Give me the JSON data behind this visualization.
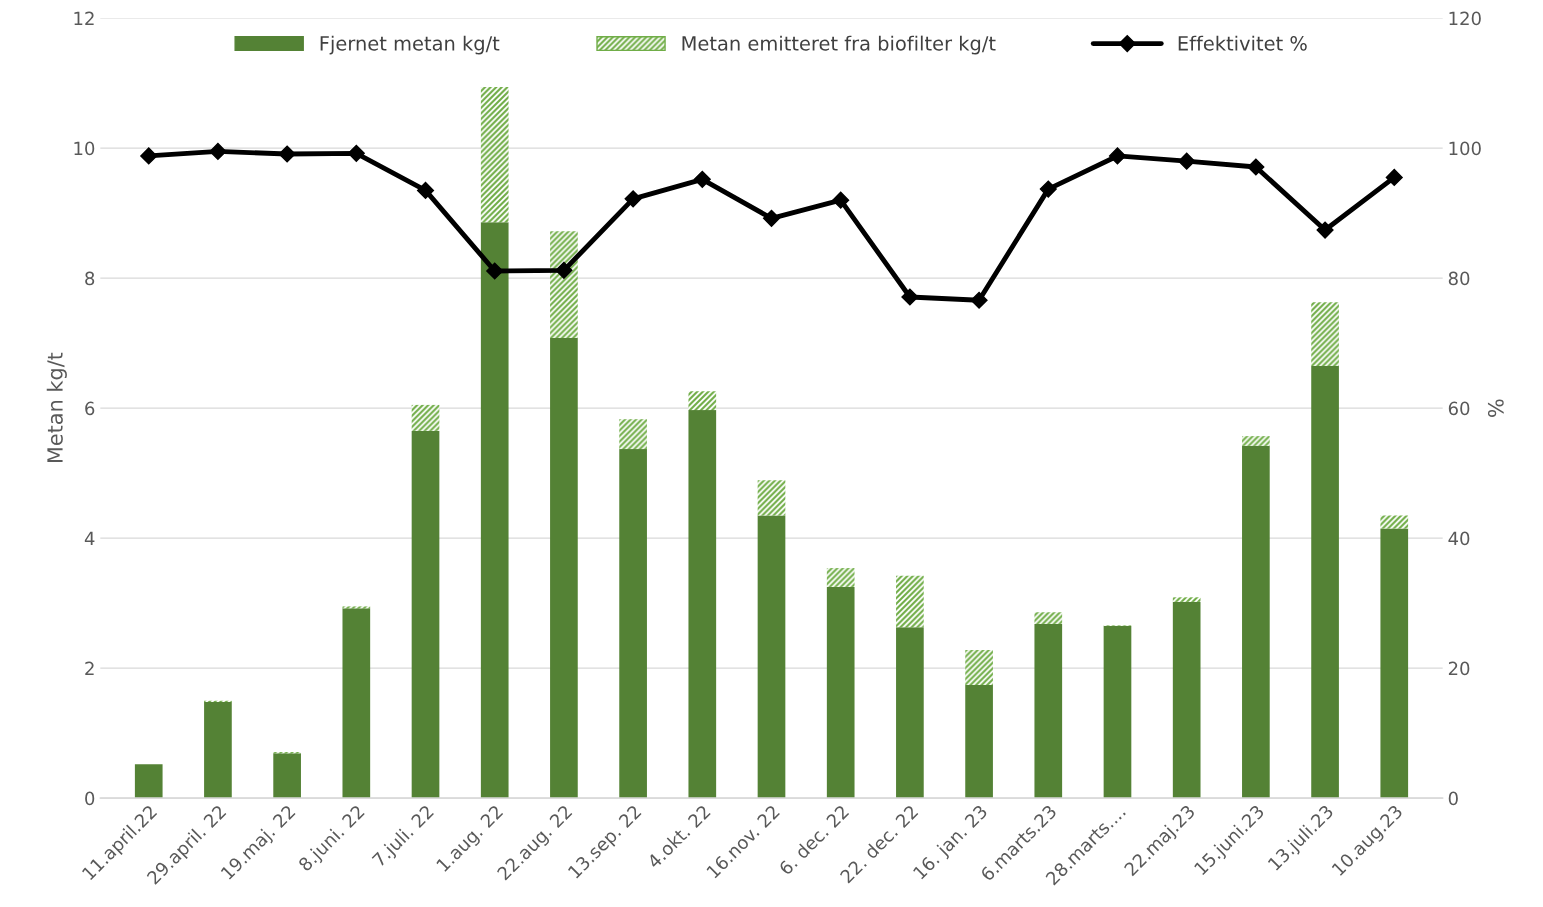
{
  "chart_data": {
    "type": "bar",
    "stacked": true,
    "ylabel": "Metan kg/t",
    "y2label": "%",
    "categories": [
      "11.april.22",
      "29.april. 22",
      "19.maj. 22",
      "8.juni. 22",
      "7.juli. 22",
      "1.aug. 22",
      "22.aug. 22",
      "13.sep. 22",
      "4.okt. 22",
      "16.nov. 22",
      "6. dec. 22",
      "22. dec. 22",
      "16. jan. 23",
      "6.marts.23",
      "28.marts....",
      "22.maj.23",
      "15.juni.23",
      "13.juli.23",
      "10.aug.23"
    ],
    "series": [
      {
        "name": "Fjernet metan kg/t",
        "color": "#548235",
        "values": [
          0.52,
          1.48,
          0.69,
          2.92,
          5.65,
          8.86,
          7.08,
          5.37,
          5.97,
          4.35,
          3.25,
          2.63,
          1.74,
          2.68,
          2.65,
          3.02,
          5.42,
          6.65,
          4.15
        ]
      },
      {
        "name": "Metan emitteret fra biofilter kg/t",
        "color": "#70ad47",
        "values": [
          null,
          0.02,
          0.02,
          0.03,
          0.4,
          2.08,
          1.64,
          0.46,
          0.29,
          0.54,
          0.29,
          0.79,
          0.54,
          0.18,
          0.01,
          0.07,
          0.15,
          0.98,
          0.2
        ]
      },
      {
        "name": "Effektivitet %",
        "type": "line",
        "axis": "y2",
        "color": "#000000",
        "marker": "diamond",
        "values": [
          98.8,
          99.5,
          99.1,
          99.2,
          93.5,
          81.1,
          81.2,
          92.2,
          95.2,
          89.2,
          92.0,
          77.1,
          76.6,
          93.7,
          98.8,
          98.0,
          97.1,
          87.4,
          95.5
        ]
      }
    ],
    "ylim": [
      0,
      12
    ],
    "yticks": [
      0,
      2,
      4,
      6,
      8,
      10,
      12
    ],
    "y2lim": [
      0,
      120
    ],
    "y2ticks": [
      0,
      20,
      40,
      60,
      80,
      100,
      120
    ],
    "grid": "y",
    "legend": "top"
  }
}
